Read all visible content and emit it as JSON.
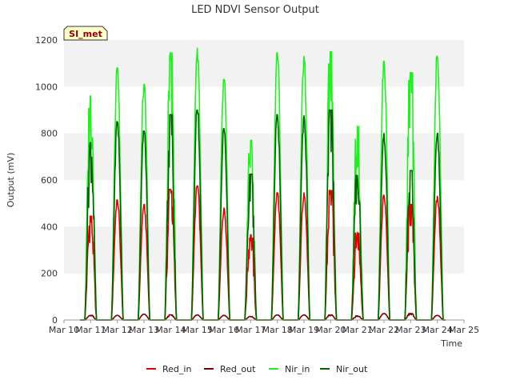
{
  "chart_data": {
    "type": "line",
    "title": "LED NDVI Sensor Output",
    "xlabel": "Time",
    "ylabel": "Output (mV)",
    "site_label": "SI_met",
    "x_ticks": [
      "Mar 10",
      "Mar 11",
      "Mar 12",
      "Mar 13",
      "Mar 14",
      "Mar 15",
      "Mar 16",
      "Mar 17",
      "Mar 18",
      "Mar 19",
      "Mar 20",
      "Mar 21",
      "Mar 22",
      "Mar 23",
      "Mar 24",
      "Mar 25"
    ],
    "xlim": [
      0,
      15
    ],
    "y_ticks": [
      0,
      200,
      400,
      600,
      800,
      1000,
      1200
    ],
    "ylim": [
      0,
      1200
    ],
    "grid": "horizontal bands",
    "legend_position": "bottom",
    "day_peaks": {
      "days": [
        "Mar 11",
        "Mar 12",
        "Mar 13",
        "Mar 14",
        "Mar 15",
        "Mar 16",
        "Mar 17",
        "Mar 18",
        "Mar 19",
        "Mar 20",
        "Mar 21",
        "Mar 22",
        "Mar 23",
        "Mar 24"
      ],
      "series": [
        {
          "name": "Red_in",
          "color": "#e00000",
          "values": [
            445,
            515,
            495,
            560,
            575,
            480,
            365,
            545,
            545,
            555,
            375,
            535,
            495,
            530
          ]
        },
        {
          "name": "Red_out",
          "color": "#7a0000",
          "values": [
            20,
            20,
            25,
            22,
            22,
            20,
            15,
            22,
            22,
            22,
            18,
            28,
            28,
            20
          ]
        },
        {
          "name": "Nir_in",
          "color": "#22ee22",
          "values": [
            960,
            1080,
            1010,
            1145,
            1165,
            1030,
            770,
            1145,
            1130,
            1150,
            830,
            1110,
            1060,
            1130
          ]
        },
        {
          "name": "Nir_out",
          "color": "#006400",
          "values": [
            760,
            850,
            810,
            880,
            900,
            820,
            625,
            880,
            875,
            900,
            620,
            800,
            640,
            800
          ]
        }
      ]
    }
  }
}
